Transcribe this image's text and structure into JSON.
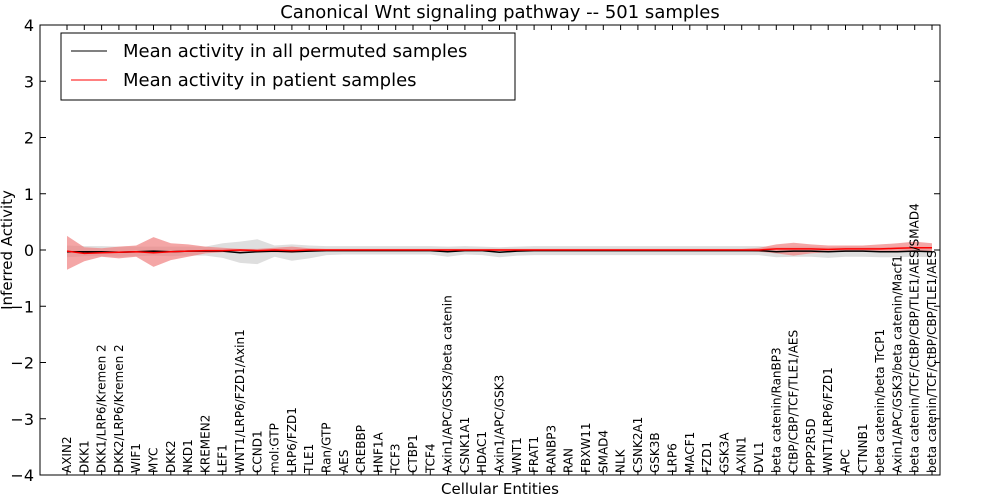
{
  "chart_data": {
    "type": "line",
    "title": "Canonical Wnt signaling pathway -- 501 samples",
    "xlabel": "Cellular Entities",
    "ylabel": "Inferred Activity",
    "ylim": [
      -4,
      4
    ],
    "yticks": [
      4,
      3,
      2,
      1,
      0,
      -1,
      -2,
      -3,
      -4
    ],
    "ytick_labels": [
      "4",
      "3",
      "2",
      "1",
      "0",
      "−1",
      "−2",
      "−3",
      "−4"
    ],
    "legend": {
      "placement": "top-left",
      "entries": [
        {
          "label": "Mean activity in all permuted samples",
          "color": "#000000"
        },
        {
          "label": "Mean activity in patient samples",
          "color": "#ff0000"
        }
      ]
    },
    "colors": {
      "permuted_line": "#000000",
      "patient_line": "#ff0000",
      "permuted_band": "#c8c8c8",
      "patient_band": "#f08080"
    },
    "categories": [
      "AXIN2",
      "DKK1",
      "DKK1/LRP6/Kremen 2",
      "DKK2/LRP6/Kremen 2",
      "WIF1",
      "MYC",
      "DKK2",
      "NKD1",
      "KREMEN2",
      "LEF1",
      "WNT1/LRP6/FZD1/Axin1",
      "CCND1",
      "mol:GTP",
      "LRP6/FZD1",
      "TLE1",
      "Ran/GTP",
      "AES",
      "CREBBP",
      "HNF1A",
      "TCF3",
      "CTBP1",
      "TCF4",
      "Axin1/APC/GSK3/beta catenin",
      "CSNK1A1",
      "HDAC1",
      "Axin1/APC/GSK3",
      "WNT1",
      "FRAT1",
      "RANBP3",
      "RAN",
      "FBXW11",
      "SMAD4",
      "NLK",
      "CSNK2A1",
      "GSK3B",
      "LRP6",
      "MACF1",
      "FZD1",
      "GSK3A",
      "AXIN1",
      "DVL1",
      "beta catenin/RanBP3",
      "CtBP/CBP/TCF/TLE1/AES",
      "PPP2R5D",
      "WNT1/LRP6/FZD1",
      "APC",
      "CTNNB1",
      "beta catenin/beta TrCP1",
      "Axin1/APC/GSK3/beta catenin/Macf1",
      "beta catenin/TCF/CtBP/CBP/TLE1/AES/SMAD4",
      "beta catenin/TCF/CtBP/CBP/TLE1/AES"
    ],
    "series": [
      {
        "name": "Mean activity in all permuted samples",
        "values": [
          -0.03,
          -0.03,
          -0.03,
          -0.04,
          -0.03,
          -0.02,
          -0.03,
          -0.02,
          -0.02,
          -0.02,
          -0.05,
          -0.03,
          -0.02,
          -0.03,
          -0.02,
          -0.01,
          -0.01,
          -0.01,
          -0.01,
          -0.01,
          -0.01,
          -0.01,
          -0.03,
          -0.01,
          -0.01,
          -0.04,
          -0.02,
          -0.01,
          -0.01,
          -0.01,
          -0.01,
          -0.01,
          -0.01,
          -0.01,
          -0.01,
          -0.01,
          -0.01,
          -0.01,
          -0.01,
          -0.01,
          -0.01,
          -0.03,
          -0.02,
          -0.02,
          -0.03,
          -0.02,
          -0.02,
          -0.03,
          -0.03,
          -0.02,
          -0.03
        ],
        "lower": [
          -0.13,
          -0.11,
          -0.11,
          -0.12,
          -0.11,
          -0.1,
          -0.11,
          -0.1,
          -0.1,
          -0.14,
          -0.23,
          -0.25,
          -0.12,
          -0.19,
          -0.15,
          -0.09,
          -0.08,
          -0.08,
          -0.08,
          -0.08,
          -0.08,
          -0.08,
          -0.12,
          -0.08,
          -0.09,
          -0.13,
          -0.1,
          -0.09,
          -0.09,
          -0.09,
          -0.09,
          -0.09,
          -0.09,
          -0.09,
          -0.09,
          -0.09,
          -0.09,
          -0.09,
          -0.09,
          -0.09,
          -0.09,
          -0.13,
          -0.12,
          -0.12,
          -0.14,
          -0.12,
          -0.12,
          -0.13,
          -0.13,
          -0.12,
          -0.13
        ],
        "upper": [
          0.08,
          0.07,
          0.07,
          0.06,
          0.06,
          0.06,
          0.06,
          0.06,
          0.06,
          0.12,
          0.15,
          0.19,
          0.08,
          0.1,
          0.08,
          0.07,
          0.07,
          0.07,
          0.07,
          0.07,
          0.07,
          0.07,
          0.06,
          0.07,
          0.06,
          0.05,
          0.06,
          0.07,
          0.07,
          0.07,
          0.07,
          0.07,
          0.07,
          0.07,
          0.07,
          0.07,
          0.07,
          0.07,
          0.07,
          0.07,
          0.07,
          0.05,
          0.06,
          0.06,
          0.05,
          0.06,
          0.06,
          0.05,
          0.05,
          0.06,
          0.05
        ]
      },
      {
        "name": "Mean activity in patient samples",
        "values": [
          -0.02,
          -0.06,
          -0.05,
          -0.04,
          -0.03,
          -0.05,
          -0.03,
          -0.02,
          -0.01,
          -0.01,
          0.0,
          -0.01,
          0.0,
          -0.01,
          0.0,
          0.0,
          0.0,
          0.0,
          0.0,
          0.0,
          0.0,
          0.0,
          0.0,
          0.0,
          0.0,
          0.0,
          0.0,
          0.0,
          0.0,
          0.0,
          0.0,
          0.0,
          0.0,
          0.0,
          0.0,
          0.0,
          0.0,
          0.0,
          0.0,
          0.0,
          0.0,
          0.02,
          0.02,
          0.02,
          0.01,
          0.02,
          0.02,
          0.02,
          0.03,
          0.04,
          0.04
        ],
        "lower": [
          -0.35,
          -0.2,
          -0.12,
          -0.15,
          -0.12,
          -0.3,
          -0.18,
          -0.12,
          -0.06,
          -0.04,
          -0.03,
          -0.04,
          -0.04,
          -0.05,
          -0.03,
          -0.02,
          -0.02,
          -0.02,
          -0.02,
          -0.02,
          -0.02,
          -0.02,
          -0.02,
          -0.02,
          -0.02,
          -0.02,
          -0.02,
          -0.02,
          -0.02,
          -0.02,
          -0.02,
          -0.02,
          -0.02,
          -0.02,
          -0.02,
          -0.02,
          -0.02,
          -0.02,
          -0.02,
          -0.02,
          -0.03,
          -0.06,
          -0.1,
          -0.06,
          -0.04,
          -0.03,
          -0.02,
          -0.02,
          -0.02,
          -0.02,
          -0.02
        ],
        "upper": [
          0.25,
          0.05,
          0.03,
          0.06,
          0.08,
          0.23,
          0.12,
          0.1,
          0.06,
          0.04,
          0.02,
          0.02,
          0.04,
          0.06,
          0.03,
          0.02,
          0.02,
          0.02,
          0.02,
          0.02,
          0.02,
          0.02,
          0.02,
          0.02,
          0.02,
          0.02,
          0.02,
          0.02,
          0.02,
          0.02,
          0.02,
          0.02,
          0.02,
          0.02,
          0.02,
          0.02,
          0.02,
          0.02,
          0.02,
          0.02,
          0.04,
          0.1,
          0.13,
          0.1,
          0.08,
          0.08,
          0.08,
          0.1,
          0.12,
          0.15,
          0.12
        ]
      }
    ]
  }
}
